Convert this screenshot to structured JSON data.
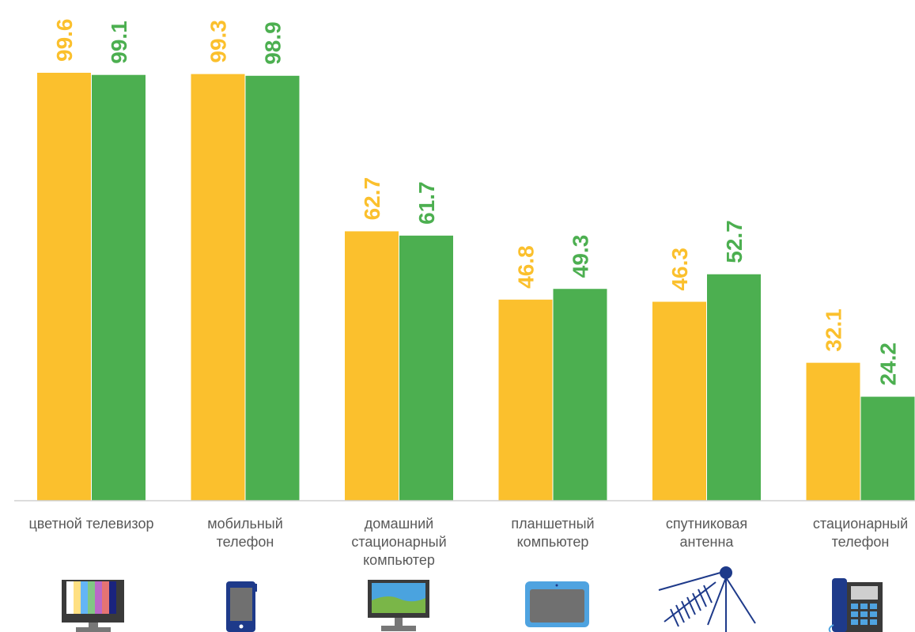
{
  "chart_data": {
    "type": "bar",
    "categories": [
      [
        "цветной телевизор"
      ],
      [
        "мобильный",
        "телефон"
      ],
      [
        "домашний",
        "стационарный",
        "компьютер"
      ],
      [
        "планшетный",
        "компьютер"
      ],
      [
        "спутниковая",
        "антенна"
      ],
      [
        "стационарный",
        "телефон"
      ]
    ],
    "series": [
      {
        "values": [
          99.6,
          99.3,
          62.7,
          46.8,
          46.3,
          32.1
        ],
        "color": "#FBC02D"
      },
      {
        "values": [
          99.1,
          98.9,
          61.7,
          49.3,
          52.7,
          24.2
        ],
        "color": "#4CAF50"
      }
    ],
    "ylim": [
      0,
      100
    ],
    "grid": false,
    "legend": "none",
    "icons": [
      "color-tv-icon",
      "mobile-phone-icon",
      "desktop-computer-icon",
      "tablet-icon",
      "satellite-antenna-icon",
      "landline-phone-icon"
    ]
  }
}
